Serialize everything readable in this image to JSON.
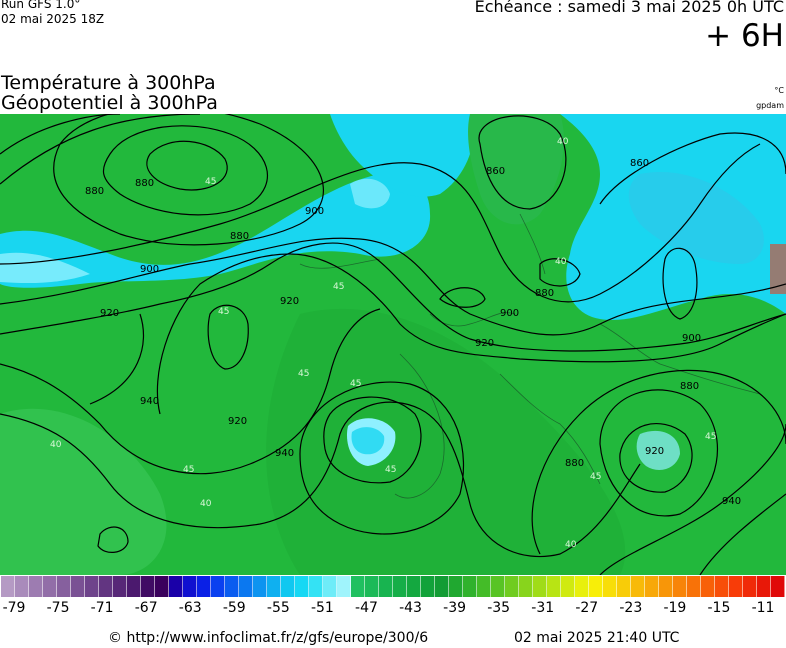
{
  "header": {
    "run_label": "Run GFS 1.0°",
    "run_date": "02 mai 2025 18Z",
    "echeance": "Echéance : samedi 3 mai 2025 0h UTC",
    "lead_time": "+ 6H"
  },
  "titles": {
    "line1": "Température à 300hPa",
    "line2": "Géopotentiel à 300hPa",
    "unit_temp": "°C",
    "unit_geo": "gpdam"
  },
  "map": {
    "contour_labels": [
      "880",
      "880",
      "880",
      "880",
      "900",
      "900",
      "900",
      "900",
      "920",
      "920",
      "920",
      "920",
      "920",
      "940",
      "940",
      "940",
      "860",
      "860",
      "880",
      "880"
    ],
    "temp_labels": [
      "45",
      "45",
      "40",
      "45",
      "45",
      "45",
      "40",
      "45",
      "45",
      "40",
      "45",
      "40",
      "40",
      "45"
    ],
    "colors": {
      "green": "#22b83c",
      "light_green": "#3ecd5a",
      "dark_green": "#1a9e2e",
      "cyan": "#19d6f0",
      "light_cyan": "#8ff0ff",
      "contour": "#000000"
    }
  },
  "colorbar": {
    "tick_labels": [
      "-79",
      "-75",
      "-71",
      "-67",
      "-63",
      "-59",
      "-55",
      "-51",
      "-47",
      "-43",
      "-39",
      "-35",
      "-31",
      "-27",
      "-23",
      "-19",
      "-15",
      "-11"
    ],
    "swatches": [
      "#b59ac4",
      "#a98bbb",
      "#9d7cb1",
      "#926ea8",
      "#86609e",
      "#7a5194",
      "#6e438b",
      "#623581",
      "#572777",
      "#4b196e",
      "#400b64",
      "#3a005c",
      "#1a00a8",
      "#1010d0",
      "#0a20e6",
      "#0a40f0",
      "#0a5cf0",
      "#0b78f0",
      "#0d94f0",
      "#0fb0f0",
      "#10c8f0",
      "#16d8f4",
      "#34e2f4",
      "#6eecf8",
      "#a0f4fc",
      "#20c060",
      "#1cba58",
      "#18b450",
      "#16ae48",
      "#14a840",
      "#12a23a",
      "#129c34",
      "#20a830",
      "#30b22c",
      "#44bc28",
      "#58c424",
      "#70cc20",
      "#88d41c",
      "#a0dc18",
      "#b8e414",
      "#d0ea10",
      "#e8f00c",
      "#f8ee08",
      "#f8de08",
      "#f8cc08",
      "#f8ba08",
      "#f8a808",
      "#f89608",
      "#f88408",
      "#f87208",
      "#f86008",
      "#f84e08",
      "#f83c08",
      "#f02a08",
      "#e81808",
      "#e00808"
    ]
  },
  "footer": {
    "url": "© http://www.infoclimat.fr/z/gfs/europe/300/6",
    "date": "02 mai 2025 21:40 UTC"
  }
}
